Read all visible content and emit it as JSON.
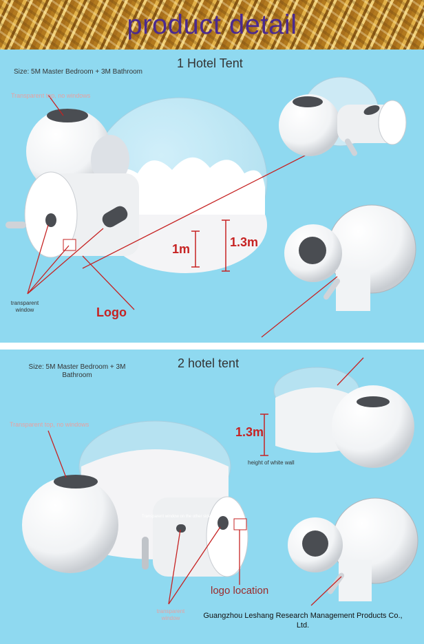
{
  "banner": {
    "title": "product detail"
  },
  "section1": {
    "title": "1 Hotel Tent",
    "size": "Size: 5M Master Bedroom + 3M Bathroom",
    "top_note": "Transparent top, no windows",
    "window_label": "transparent window",
    "dim_1": "1m",
    "dim_2": "1.3m",
    "logo_label": "Logo"
  },
  "section2": {
    "title": "2 hotel tent",
    "size": "Size: 5M Master Bedroom + 3M Bathroom",
    "top_note": "Transparent top, no windows",
    "dim": "1.3m",
    "wall_note": "height of white wall",
    "other_side_note": "Transparent window on the other side",
    "window_label": "transparent window",
    "logo_location": "logo location",
    "company": "Guangzhou Leshang Research Management Products Co., Ltd."
  },
  "colors": {
    "sky": "#8fd9f0",
    "banner_text": "#4b2a8f",
    "accent_red": "#c62222"
  }
}
